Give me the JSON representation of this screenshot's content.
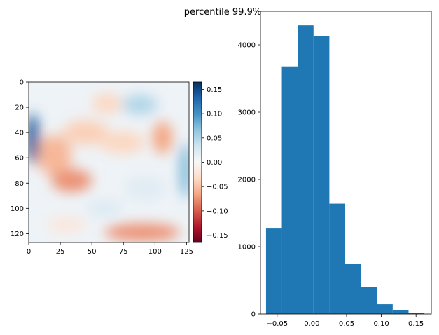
{
  "figure": {
    "suptitle": "percentile 99.9%"
  },
  "chart_data": [
    {
      "type": "heatmap",
      "colormap": "RdBu",
      "x_ticks": [
        "0",
        "25",
        "50",
        "75",
        "100",
        "125"
      ],
      "y_ticks": [
        "0",
        "20",
        "40",
        "60",
        "80",
        "100",
        "120"
      ],
      "xlim": [
        0,
        127
      ],
      "ylim": [
        0,
        127
      ],
      "colorbar": {
        "range": [
          -0.165,
          0.165
        ],
        "ticks": [
          "0.15",
          "0.10",
          "0.05",
          "0.00",
          "−0.05",
          "−0.10",
          "−0.15"
        ],
        "tick_values": [
          0.15,
          0.1,
          0.05,
          0.0,
          -0.05,
          -0.1,
          -0.15
        ]
      },
      "features": [
        {
          "x": 20,
          "y": 58,
          "rx": 14,
          "ry": 16,
          "value": -0.055
        },
        {
          "x": 34,
          "y": 78,
          "rx": 16,
          "ry": 9,
          "value": -0.075
        },
        {
          "x": 45,
          "y": 40,
          "rx": 18,
          "ry": 10,
          "value": -0.04
        },
        {
          "x": 62,
          "y": 17,
          "rx": 12,
          "ry": 8,
          "value": -0.035
        },
        {
          "x": 74,
          "y": 48,
          "rx": 18,
          "ry": 9,
          "value": -0.035
        },
        {
          "x": 106,
          "y": 44,
          "rx": 8,
          "ry": 13,
          "value": -0.065
        },
        {
          "x": 90,
          "y": 119,
          "rx": 30,
          "ry": 7,
          "value": -0.075
        },
        {
          "x": 30,
          "y": 113,
          "rx": 16,
          "ry": 6,
          "value": -0.02
        },
        {
          "x": 88,
          "y": 18,
          "rx": 14,
          "ry": 8,
          "value": 0.05
        },
        {
          "x": 3,
          "y": 45,
          "rx": 5,
          "ry": 20,
          "value": 0.14
        },
        {
          "x": 124,
          "y": 70,
          "rx": 4,
          "ry": 22,
          "value": 0.08
        },
        {
          "x": 60,
          "y": 100,
          "rx": 14,
          "ry": 6,
          "value": 0.025
        },
        {
          "x": 92,
          "y": 84,
          "rx": 16,
          "ry": 10,
          "value": 0.02
        }
      ]
    },
    {
      "type": "bar",
      "x_ticks": [
        "−0.05",
        "0.00",
        "0.05",
        "0.10",
        "0.15"
      ],
      "x_tick_values": [
        -0.05,
        0.0,
        0.05,
        0.1,
        0.15
      ],
      "y_ticks": [
        "0",
        "1000",
        "2000",
        "3000",
        "4000"
      ],
      "y_tick_values": [
        0,
        1000,
        2000,
        3000,
        4000
      ],
      "xlim": [
        -0.074,
        0.172
      ],
      "ylim": [
        0,
        4500
      ],
      "bin_edges": [
        -0.066,
        -0.0432,
        -0.0204,
        0.0024,
        0.0252,
        0.048,
        0.0708,
        0.0936,
        0.1164,
        0.1392,
        0.162
      ],
      "counts": [
        1270,
        3680,
        4290,
        4130,
        1640,
        740,
        400,
        145,
        60,
        12
      ],
      "color": "#1f77b4"
    }
  ]
}
